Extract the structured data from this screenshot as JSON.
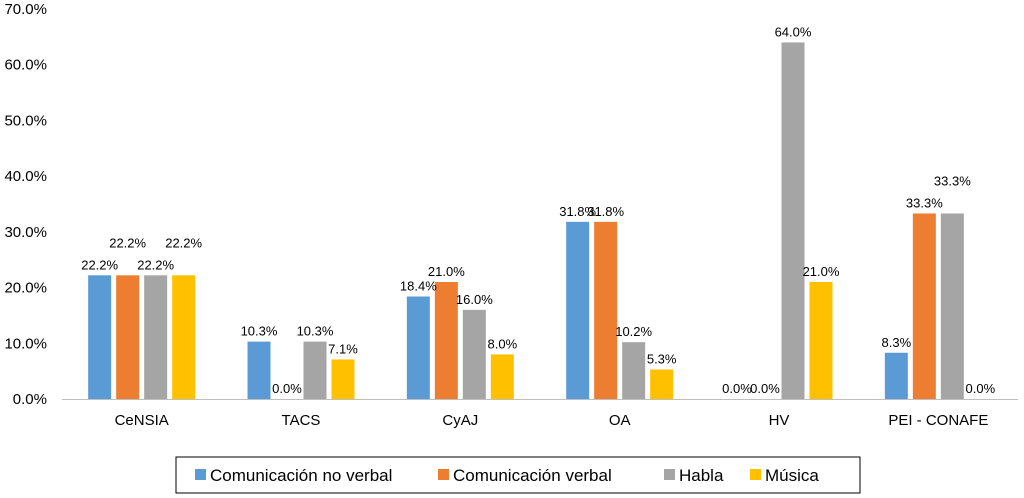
{
  "chart_data": {
    "type": "bar",
    "categories": [
      "CeNSIA",
      "TACS",
      "CyAJ",
      "OA",
      "HV",
      "PEI - CONAFE"
    ],
    "series": [
      {
        "name": "Comunicación no verbal",
        "color": "#5B9BD5",
        "values": [
          22.2,
          10.3,
          18.4,
          31.8,
          0.0,
          8.3
        ]
      },
      {
        "name": "Comunicación verbal",
        "color": "#ED7D31",
        "values": [
          22.2,
          0.0,
          21.0,
          31.8,
          0.0,
          33.3
        ]
      },
      {
        "name": "Habla",
        "color": "#A5A5A5",
        "values": [
          22.2,
          10.3,
          16.0,
          10.2,
          64.0,
          33.3
        ]
      },
      {
        "name": "Música",
        "color": "#FFC000",
        "values": [
          22.2,
          7.1,
          8.0,
          5.3,
          21.0,
          0.0
        ]
      }
    ],
    "data_labels": [
      [
        "22.2%",
        "10.3%",
        "18.4%",
        "31.8%",
        "0.0%",
        "8.3%"
      ],
      [
        "22.2%",
        "0.0%",
        "21.0%",
        "31.8%",
        "0.0%",
        "33.3%"
      ],
      [
        "22.2%",
        "10.3%",
        "16.0%",
        "10.2%",
        "64.0%",
        "33.3%"
      ],
      [
        "22.2%",
        "7.1%",
        "8.0%",
        "5.3%",
        "21.0%",
        "0.0%"
      ]
    ],
    "y_ticks": [
      "0.0%",
      "10.0%",
      "20.0%",
      "30.0%",
      "40.0%",
      "50.0%",
      "60.0%",
      "70.0%"
    ],
    "ylim": [
      0,
      70
    ],
    "grid": false,
    "legend_position": "bottom"
  }
}
